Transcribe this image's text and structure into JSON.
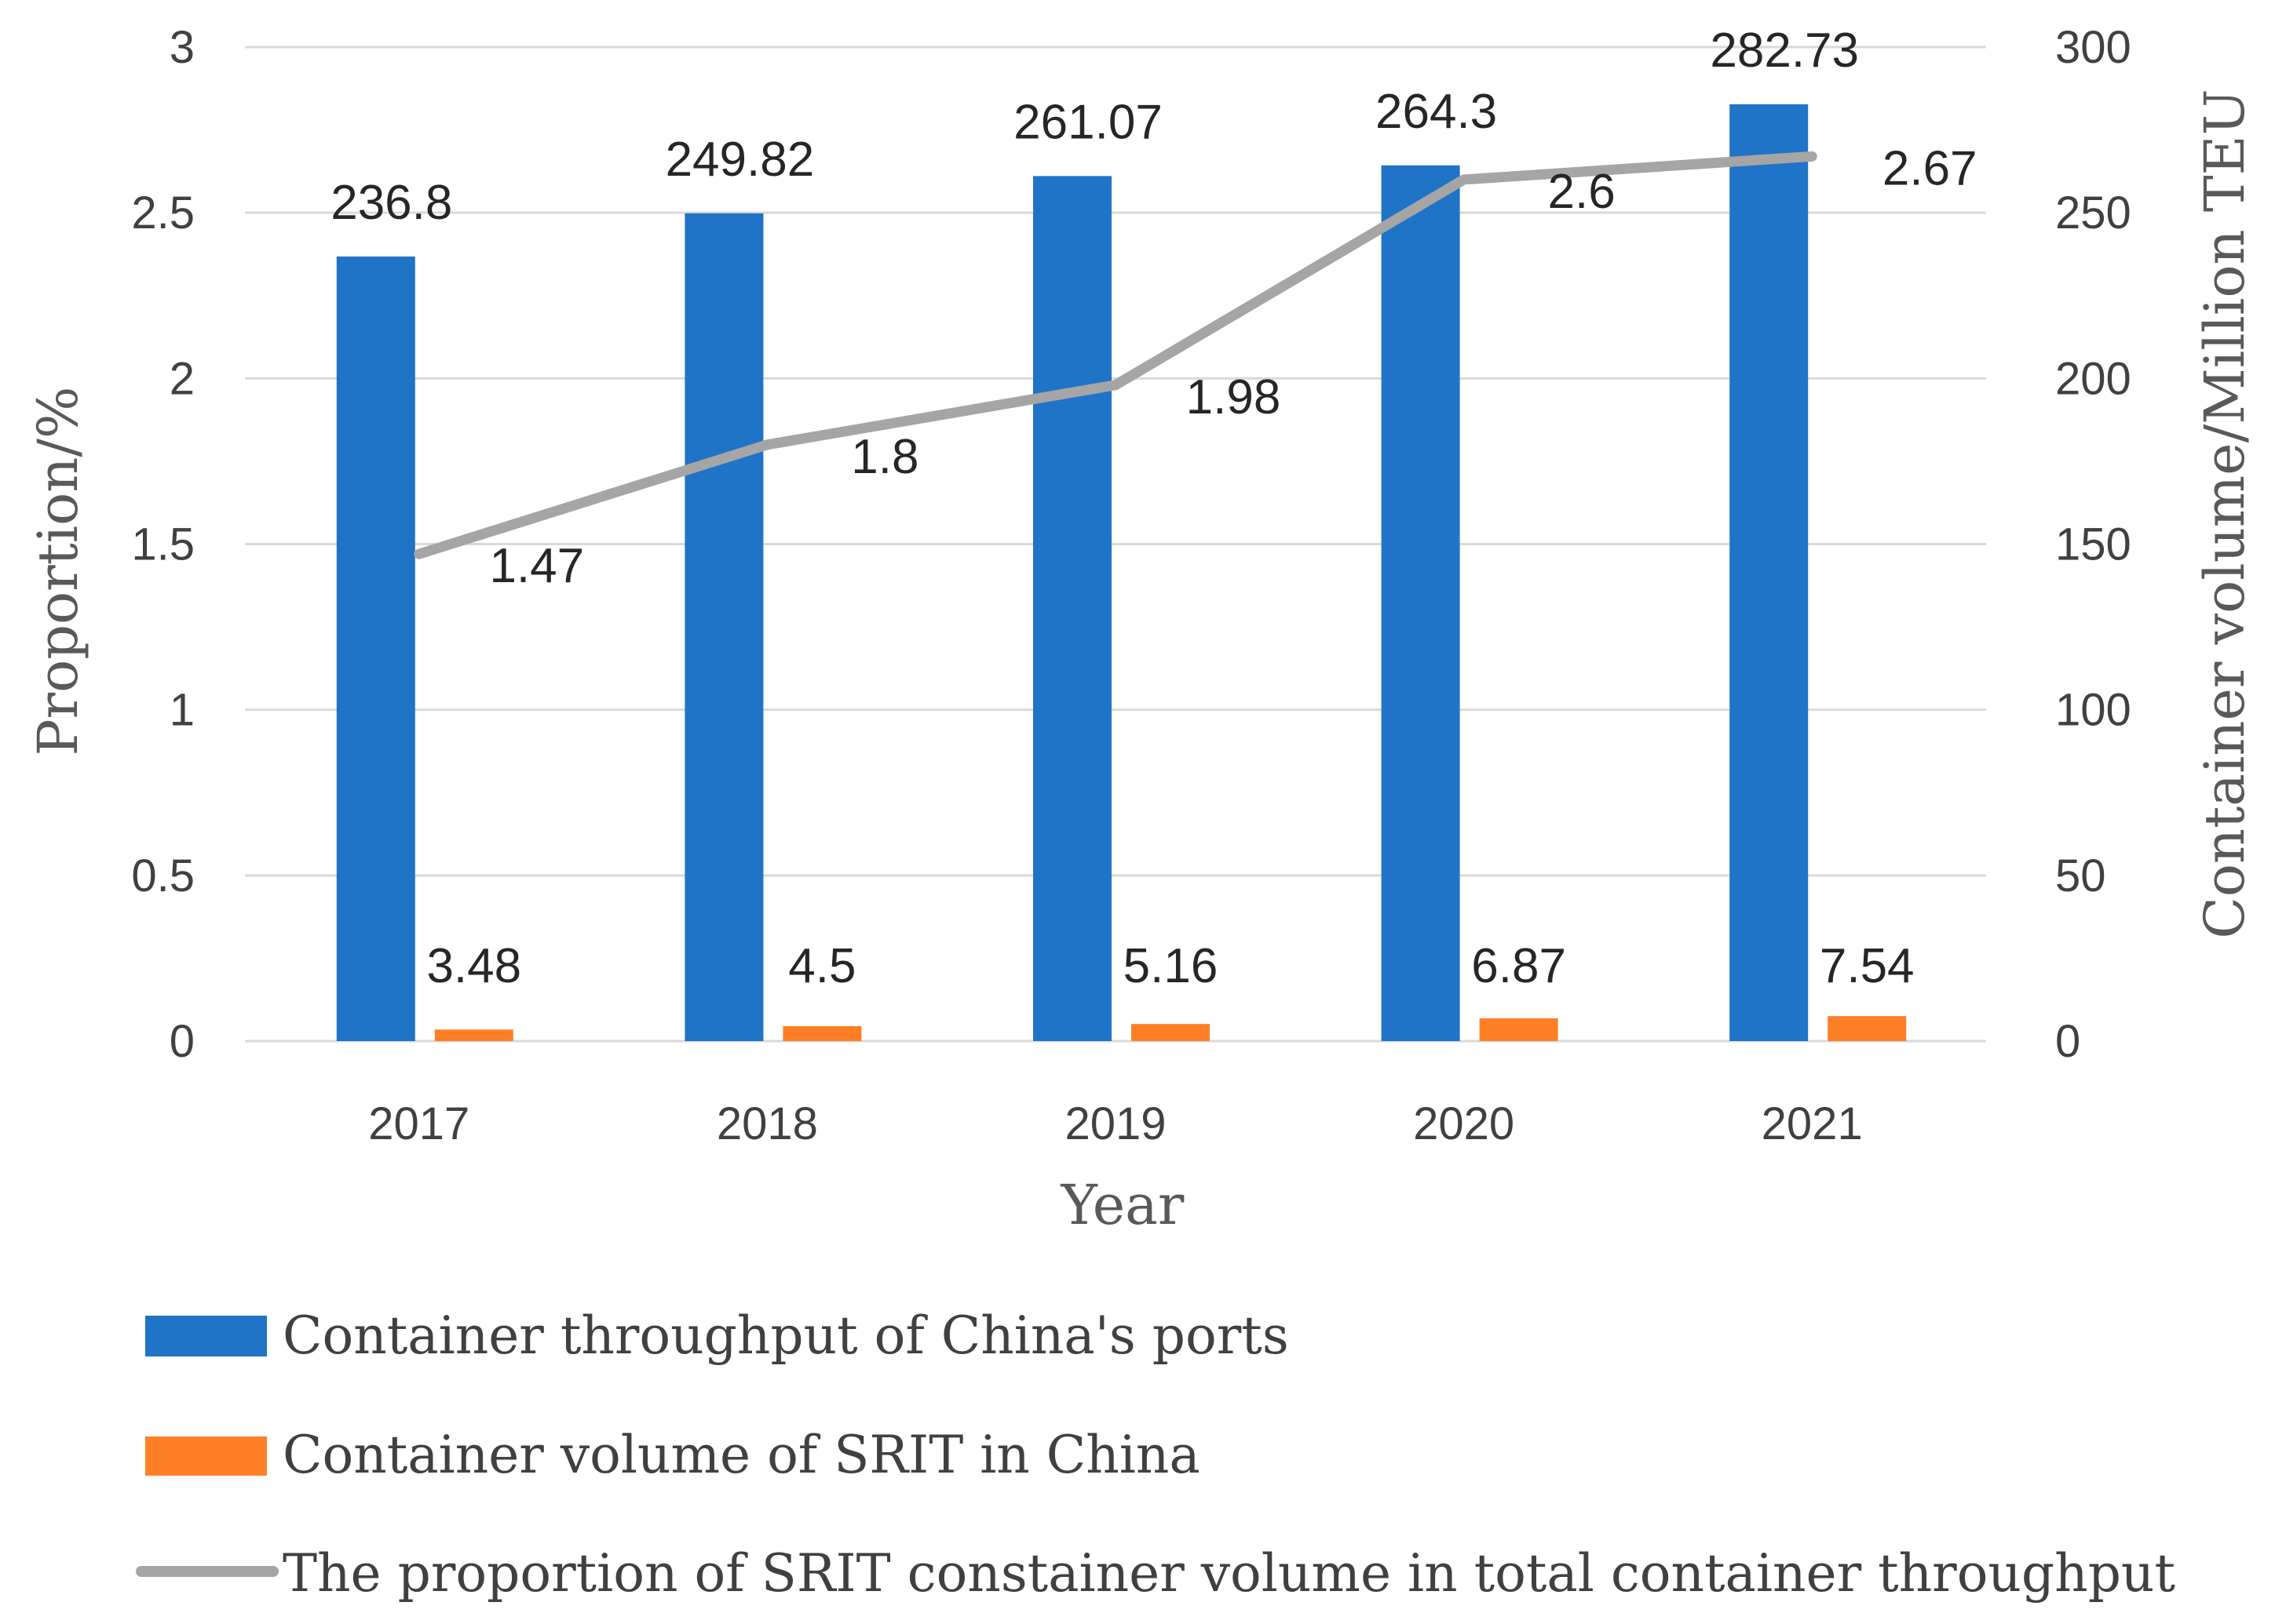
{
  "chart_data": {
    "type": "bar+line",
    "categories": [
      "2017",
      "2018",
      "2019",
      "2020",
      "2021"
    ],
    "xlabel": "Year",
    "ylabel_left": "Proportion/%",
    "ylabel_right": "Container volume/Million TEU",
    "ylim_left": [
      0,
      3
    ],
    "ylim_right": [
      0,
      300
    ],
    "left_ticks": [
      "0",
      "0.5",
      "1",
      "1.5",
      "2",
      "2.5",
      "3"
    ],
    "right_ticks": [
      "0",
      "50",
      "100",
      "150",
      "200",
      "250",
      "300"
    ],
    "grid": true,
    "legend_position": "bottom",
    "series": [
      {
        "name": "Container throughput of China's ports",
        "kind": "bar",
        "axis": "right",
        "color": "#1F74C8",
        "values": [
          236.8,
          249.82,
          261.07,
          264.3,
          282.73
        ],
        "labels": [
          "236.8",
          "249.82",
          "261.07",
          "264.3",
          "282.73"
        ]
      },
      {
        "name": "Container volume of SRIT in China",
        "kind": "bar",
        "axis": "right",
        "color": "#FF7F27",
        "values": [
          3.48,
          4.5,
          5.16,
          6.87,
          7.54
        ],
        "labels": [
          "3.48",
          "4.5",
          "5.16",
          "6.87",
          "7.54"
        ]
      },
      {
        "name": "The proportion of SRIT constainer volume in total container throughput",
        "kind": "line",
        "axis": "left",
        "color": "#A5A5A5",
        "values": [
          1.47,
          1.8,
          1.98,
          2.6,
          2.67
        ],
        "labels": [
          "1.47",
          "1.8",
          "1.98",
          "2.6",
          "2.67"
        ]
      }
    ]
  }
}
